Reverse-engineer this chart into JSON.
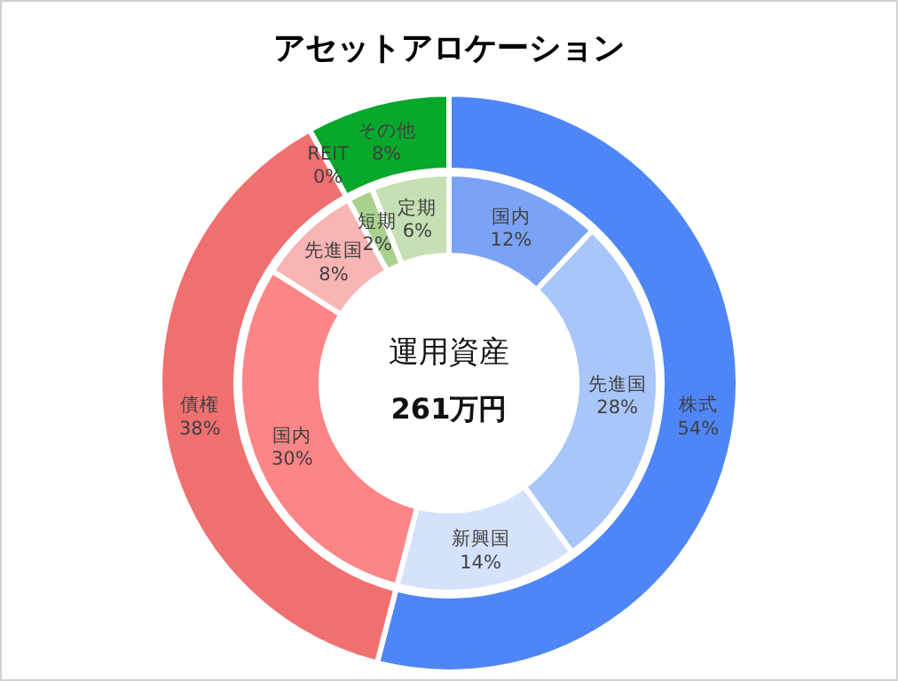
{
  "chart_data": [
    {
      "type": "donut",
      "title": "アセットアロケーション",
      "categories": [
        "株式",
        "債権",
        "REIT",
        "その他"
      ],
      "values": [
        54,
        38,
        0,
        8
      ],
      "value_labels": [
        "54%",
        "38%",
        "0%",
        "8%"
      ],
      "colors": [
        "#4f86f7",
        "#f07070",
        "#f07070",
        "#08a82c"
      ]
    },
    {
      "type": "donut",
      "categories": [
        "国内",
        "先進国",
        "新興国",
        "国内",
        "先進国",
        "短期",
        "定期"
      ],
      "values": [
        12,
        28,
        14,
        30,
        8,
        2,
        6
      ],
      "value_labels": [
        "12%",
        "28%",
        "14%",
        "30%",
        "8%",
        "2%",
        "6%"
      ],
      "colors": [
        "#7ba3f5",
        "#a9c6fb",
        "#d5e2fc",
        "#fd8585",
        "#f9b4b4",
        "#a9d18e",
        "#c5e0b4"
      ],
      "annotations": [
        "運用資産",
        "261万円"
      ]
    }
  ]
}
